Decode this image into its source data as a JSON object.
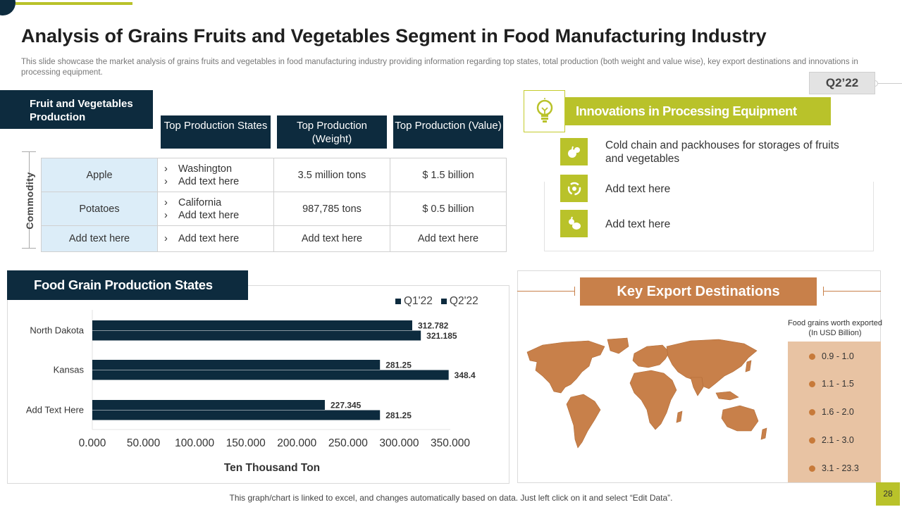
{
  "header": {
    "title": "Analysis of Grains Fruits and Vegetables Segment in Food Manufacturing Industry",
    "subtitle": "This slide showcase the market analysis of grains fruits and vegetables in food manufacturing industry providing information regarding top states, total production (both weight and value wise), key export destinations and innovations in processing equipment.",
    "quarter": "Q2’22"
  },
  "fruit_veg": {
    "header": "Fruit and Vegetables Production",
    "commodity_label": "Commodity",
    "columns": [
      "Top Production States",
      "Top Production (Weight)",
      "Top Production (Value)"
    ],
    "rows": [
      {
        "name": "Apple",
        "states": [
          "Washington",
          "Add text here"
        ],
        "weight": "3.5 million tons",
        "value": "$ 1.5 billion"
      },
      {
        "name": "Potatoes",
        "states": [
          "California",
          "Add text here"
        ],
        "weight": "987,785 tons",
        "value": "$ 0.5 billion"
      },
      {
        "name": "Add text here",
        "states": [
          "Add text here"
        ],
        "weight": "Add text here",
        "value": "Add text here"
      }
    ]
  },
  "innovations": {
    "title": "Innovations in Processing Equipment",
    "items": [
      {
        "icon": "fruits-icon",
        "text": "Cold chain and packhouses for storages of fruits and vegetables"
      },
      {
        "icon": "recycle-icon",
        "text": "Add text here"
      },
      {
        "icon": "produce-icon",
        "text": "Add text here"
      }
    ]
  },
  "grain_section": {
    "header": "Food Grain Production States"
  },
  "chart_data": {
    "type": "bar",
    "orientation": "horizontal",
    "categories": [
      "North Dakota",
      "Kansas",
      "Add Text Here"
    ],
    "series": [
      {
        "name": "Q1'22",
        "values": [
          312.782,
          281.25,
          227.345
        ]
      },
      {
        "name": "Q2'22",
        "values": [
          321.185,
          348.4,
          281.25
        ]
      }
    ],
    "value_labels": [
      [
        "312.782",
        "281.25",
        "227.345"
      ],
      [
        "321.185",
        "348.4",
        "281.25"
      ]
    ],
    "xlabel": "Ten Thousand Ton",
    "ylabel": "",
    "xlim": [
      0,
      350
    ],
    "ticks": [
      0,
      50,
      100,
      150,
      200,
      250,
      300,
      350
    ],
    "tick_labels": [
      "0.000",
      "50.000",
      "100.000",
      "150.000",
      "200.000",
      "250.000",
      "300.000",
      "350.000"
    ],
    "legend_position": "top-right",
    "grid": false,
    "colors": [
      "#0d2b3e",
      "#0d2b3e"
    ]
  },
  "exports": {
    "title": "Key Export Destinations",
    "legend_title": "Food grains worth exported (In USD Billion)",
    "ranges": [
      "0.9 - 1.0",
      "1.1 - 1.5",
      "1.6 - 2.0",
      "2.1 - 3.0",
      "3.1 - 23.3"
    ]
  },
  "footer": {
    "note": "This graph/chart is linked to excel, and changes automatically based on data. Just left click on it and select “Edit Data”.",
    "page_number": "28"
  },
  "colors": {
    "navy": "#0d2b3e",
    "lime": "#b9c22a",
    "copper": "#c8804a",
    "light_blue": "#dcedf8",
    "map_legend_bg": "#e8c3a3"
  }
}
